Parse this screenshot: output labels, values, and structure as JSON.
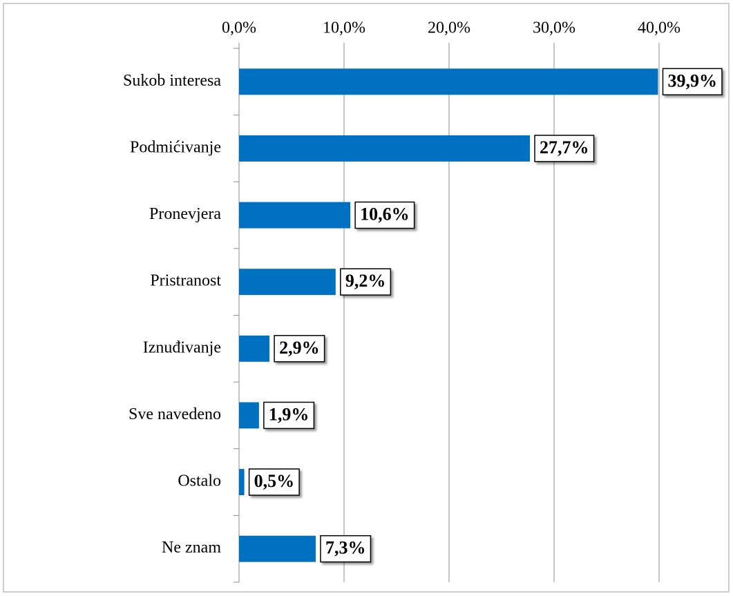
{
  "chart_data": {
    "type": "hbar",
    "categories": [
      "Sukob interesa",
      "Podmićivanje",
      "Pronevjera",
      "Pristranost",
      "Iznuđivanje",
      "Sve navedeno",
      "Ostalo",
      "Ne znam"
    ],
    "values": [
      39.9,
      27.7,
      10.6,
      9.2,
      2.9,
      1.9,
      0.5,
      7.3
    ],
    "value_labels": [
      "39,9%",
      "27,7%",
      "10,6%",
      "9,2%",
      "2,9%",
      "1,9%",
      "0,5%",
      "7,3%"
    ],
    "color": "#0070c0",
    "xlim": [
      0,
      40
    ],
    "xticks": [
      {
        "value": 0,
        "label": "0,0%"
      },
      {
        "value": 10,
        "label": "10,0%"
      },
      {
        "value": 20,
        "label": "20,0%"
      },
      {
        "value": 30,
        "label": "30,0%"
      },
      {
        "value": 40,
        "label": "40,0%"
      }
    ],
    "grid": true
  }
}
